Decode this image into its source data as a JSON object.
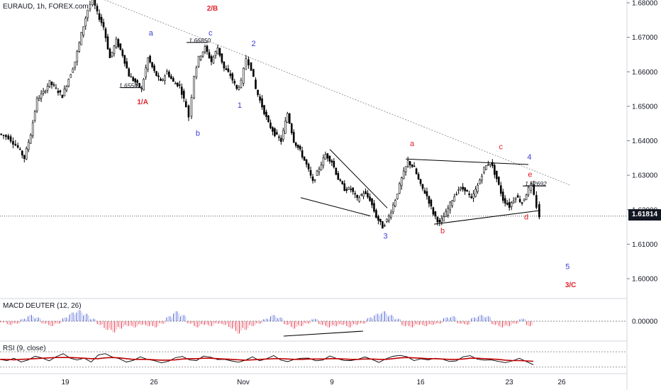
{
  "header": {
    "symbol_line": "EURAUD, 1h, FOREX.com"
  },
  "current_price": {
    "label": "1.61814",
    "value": 1.61814
  },
  "colors": {
    "wave_blue": "#3b3bd6",
    "wave_red": "#e0202a",
    "candle": "#000000",
    "macd_pos_dark": "#5555dd",
    "macd_pos_light": "#9fbfe6",
    "macd_neg_dark": "#e8334a",
    "macd_neg_light": "#f3a0aa",
    "rsi_line": "#000000",
    "rsi_ma": "#c00000",
    "trend": "#999999"
  },
  "chart_data": [
    {
      "type": "line",
      "title": "EURAUD, 1h, FOREX.com",
      "xlabel": "",
      "ylabel": "",
      "x_tick_labels": [
        "19",
        "26",
        "Nov",
        "9",
        "16",
        "23",
        "26"
      ],
      "y_tick_labels": [
        "1.68000",
        "1.67000",
        "1.66000",
        "1.65000",
        "1.64000",
        "1.63000",
        "1.62000",
        "1.61000",
        "1.60000"
      ],
      "ylim": [
        1.5945,
        1.6813
      ],
      "xlim": [
        0,
        100
      ],
      "grid": false,
      "series": [
        {
          "values": [
            [
              0,
              1.642
            ],
            [
              1.5,
              1.641
            ],
            [
              3,
              1.638
            ],
            [
              4,
              1.635
            ],
            [
              5,
              1.642
            ],
            [
              6,
              1.652
            ],
            [
              7,
              1.654
            ],
            [
              8,
              1.657
            ],
            [
              9,
              1.655
            ],
            [
              10,
              1.653
            ],
            [
              11,
              1.658
            ],
            [
              12,
              1.663
            ],
            [
              13,
              1.671
            ],
            [
              14,
              1.678
            ],
            [
              14.8,
              1.681
            ],
            [
              15.5,
              1.677
            ],
            [
              16.5,
              1.673
            ],
            [
              17.5,
              1.664
            ],
            [
              18.5,
              1.669
            ],
            [
              19.5,
              1.665
            ],
            [
              20.5,
              1.659
            ],
            [
              21.5,
              1.657
            ],
            [
              22.5,
              1.655
            ],
            [
              23.5,
              1.664
            ],
            [
              24.5,
              1.66
            ],
            [
              25.5,
              1.657
            ],
            [
              26.5,
              1.66
            ],
            [
              27.5,
              1.657
            ],
            [
              28.5,
              1.656
            ],
            [
              29.5,
              1.65
            ],
            [
              30,
              1.647
            ],
            [
              30.8,
              1.659
            ],
            [
              31.5,
              1.664
            ],
            [
              32.5,
              1.667
            ],
            [
              33.5,
              1.663
            ],
            [
              34.5,
              1.667
            ],
            [
              35.5,
              1.661
            ],
            [
              36.5,
              1.659
            ],
            [
              37.5,
              1.655
            ],
            [
              38.2,
              1.657
            ],
            [
              39,
              1.664
            ],
            [
              39.8,
              1.661
            ],
            [
              40.5,
              1.655
            ],
            [
              41.5,
              1.65
            ],
            [
              42.5,
              1.645
            ],
            [
              43.5,
              1.642
            ],
            [
              44.5,
              1.64
            ],
            [
              45.5,
              1.648
            ],
            [
              46.5,
              1.64
            ],
            [
              47.5,
              1.637
            ],
            [
              48.5,
              1.633
            ],
            [
              49.5,
              1.628
            ],
            [
              50.5,
              1.632
            ],
            [
              51.5,
              1.636
            ],
            [
              52.5,
              1.634
            ],
            [
              53.5,
              1.629
            ],
            [
              54.5,
              1.626
            ],
            [
              55.5,
              1.626
            ],
            [
              56.5,
              1.623
            ],
            [
              57.5,
              1.625
            ],
            [
              58.5,
              1.623
            ],
            [
              59.5,
              1.618
            ],
            [
              60.5,
              1.615
            ],
            [
              61.5,
              1.618
            ],
            [
              62.5,
              1.623
            ],
            [
              63.5,
              1.629
            ],
            [
              64.5,
              1.634
            ],
            [
              65.5,
              1.632
            ],
            [
              66.5,
              1.627
            ],
            [
              67.5,
              1.624
            ],
            [
              68.5,
              1.619
            ],
            [
              69.5,
              1.616
            ],
            [
              70.5,
              1.619
            ],
            [
              71.5,
              1.623
            ],
            [
              72.5,
              1.626
            ],
            [
              73.5,
              1.626
            ],
            [
              74.5,
              1.623
            ],
            [
              75.5,
              1.627
            ],
            [
              76.5,
              1.632
            ],
            [
              77.5,
              1.634
            ],
            [
              78.5,
              1.629
            ],
            [
              79.5,
              1.623
            ],
            [
              80.5,
              1.621
            ],
            [
              81.5,
              1.624
            ],
            [
              82.5,
              1.622
            ],
            [
              83.5,
              1.626
            ],
            [
              84,
              1.627
            ],
            [
              84.8,
              1.621
            ],
            [
              85.3,
              1.6181
            ]
          ]
        }
      ],
      "annotations": [
        {
          "text": "1.66850",
          "x": 31.5,
          "y": 1.6685,
          "color": "black"
        },
        {
          "text": "1.65541",
          "x": 20.5,
          "y": 1.6554,
          "color": "black"
        },
        {
          "text": "1.62692",
          "x": 84.5,
          "y": 1.6269,
          "color": "black"
        },
        {
          "text": "2/B",
          "x": 33.5,
          "y": 1.6777,
          "color": "red"
        },
        {
          "text": "1/A",
          "x": 22.5,
          "y": 1.6506,
          "color": "red"
        },
        {
          "text": "a",
          "x": 23.8,
          "y": 1.6705,
          "color": "blue"
        },
        {
          "text": "b",
          "x": 31.2,
          "y": 1.6414,
          "color": "blue"
        },
        {
          "text": "c",
          "x": 33.2,
          "y": 1.6705,
          "color": "blue"
        },
        {
          "text": "1",
          "x": 37.8,
          "y": 1.6496,
          "color": "blue"
        },
        {
          "text": "2",
          "x": 40.0,
          "y": 1.6675,
          "color": "blue"
        },
        {
          "text": "3",
          "x": 60.8,
          "y": 1.6116,
          "color": "blue"
        },
        {
          "text": "a",
          "x": 65.0,
          "y": 1.6385,
          "color": "red"
        },
        {
          "text": "b",
          "x": 69.8,
          "y": 1.6132,
          "color": "red"
        },
        {
          "text": "c",
          "x": 79.0,
          "y": 1.6375,
          "color": "red"
        },
        {
          "text": "4",
          "x": 83.5,
          "y": 1.6346,
          "color": "blue"
        },
        {
          "text": "e",
          "x": 83.6,
          "y": 1.6295,
          "color": "red"
        },
        {
          "text": "d",
          "x": 83.0,
          "y": 1.6172,
          "color": "red"
        },
        {
          "text": "5",
          "x": 89.5,
          "y": 1.6028,
          "color": "blue"
        },
        {
          "text": "3/C",
          "x": 90.0,
          "y": 1.5975,
          "color": "red"
        }
      ]
    },
    {
      "type": "bar",
      "title": "MACD DEUTER (12, 26)",
      "y_tick_labels": [
        "0.00000"
      ],
      "values": [
        -0.1,
        -0.3,
        -0.2,
        0.2,
        0.5,
        0.3,
        -0.2,
        -0.4,
        -0.2,
        0.3,
        0.7,
        0.9,
        0.6,
        0.2,
        -0.3,
        -0.7,
        -0.9,
        -0.6,
        -0.4,
        -0.5,
        -0.3,
        -0.4,
        -0.5,
        -0.2,
        0.4,
        0.8,
        0.5,
        -0.2,
        -0.5,
        -0.3,
        -0.4,
        -0.2,
        -0.3,
        -0.6,
        -1.0,
        -0.7,
        -0.4,
        -0.2,
        0.2,
        0.5,
        0.3,
        -0.3,
        -0.6,
        -0.4,
        -0.2,
        0.2,
        -0.3,
        -0.5,
        -0.4,
        -0.3,
        -0.5,
        -0.3,
        -0.2,
        0.3,
        0.6,
        0.8,
        0.5,
        0.2,
        -0.4,
        -0.5,
        -0.3,
        -0.4,
        -0.3,
        -0.2,
        0.3,
        0.4,
        -0.2,
        -0.3,
        0.3,
        0.5,
        0.4,
        -0.3,
        -0.5,
        -0.4,
        -0.2,
        0.2,
        -0.4
      ]
    },
    {
      "type": "line",
      "title": "RSI (9, close)",
      "series": [
        {
          "values": [
            50,
            45,
            55,
            42,
            48,
            60,
            52,
            47,
            58,
            63,
            55,
            48,
            52,
            45,
            60,
            65,
            58,
            50,
            44,
            48,
            55,
            52,
            46,
            40,
            47,
            53,
            58,
            50,
            45,
            60,
            56,
            48,
            52,
            45,
            42,
            50,
            55,
            47,
            53,
            58,
            50,
            44,
            49,
            55,
            52,
            46,
            50,
            57,
            53,
            48,
            45,
            52,
            56,
            49,
            44,
            50,
            58,
            62,
            55,
            48,
            52,
            47,
            55,
            50,
            44,
            48,
            55,
            60,
            52,
            46,
            50,
            45,
            40,
            48,
            52,
            44,
            38
          ]
        },
        {
          "values": [
            50,
            50,
            49,
            50,
            51,
            52,
            53,
            54,
            55,
            55,
            55,
            54,
            53,
            52,
            52,
            54,
            55,
            54,
            52,
            50,
            50,
            50,
            49,
            48,
            48,
            49,
            51,
            52,
            52,
            53,
            53,
            52,
            51,
            50,
            49,
            48,
            49,
            50,
            51,
            52,
            52,
            51,
            50,
            50,
            51,
            51,
            51,
            52,
            52,
            51,
            50,
            50,
            51,
            51,
            50,
            50,
            52,
            54,
            55,
            54,
            53,
            52,
            52,
            51,
            50,
            50,
            51,
            53,
            53,
            52,
            51,
            50,
            48,
            47,
            47,
            46,
            45
          ]
        }
      ],
      "series_colors": [
        "#000000",
        "#c00000"
      ]
    }
  ]
}
